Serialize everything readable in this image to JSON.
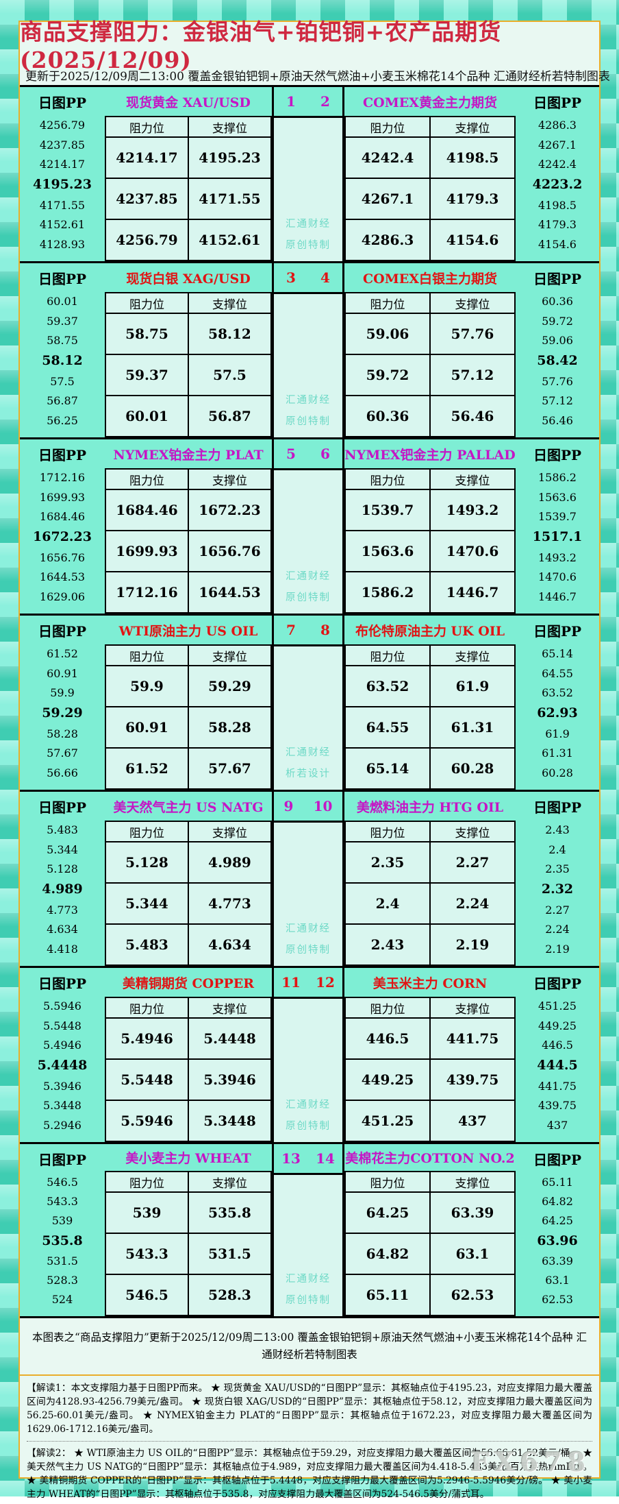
{
  "meta": {
    "update_line": "更新于2025/12/09周二13:00 覆盖金银铂钯铜+原油天然气燃油+小麦玉米棉花14个品种 汇通财经析若特制图表",
    "footer_summary": "本图表之“商品支撑阻力”更新于2025/12/09周二13:00 覆盖金银铂钯铜+原油天然气燃油+小麦玉米棉花14个品种 汇通财经析若特制图表",
    "brand_watermark": "FX678"
  },
  "labels": {
    "pp_header": "日图PP",
    "resistance": "阻力位",
    "support": "支撑位",
    "pivot_bold_index": 3
  },
  "notes": [
    "【解读1：本文支撑阻力基于日图PP而来。 ★ 现货黄金 XAU/USD的“日图PP”显示：其枢轴点位于4195.23，对应支撑阻力最大覆盖区间为4128.93-4256.79美元/盎司。 ★ 现货白银 XAG/USD的“日图PP”显示：其枢轴点位于58.12，对应支撑阻力最大覆盖区间为56.25-60.01美元/盎司。 ★ NYMEX铂金主力 PLAT的“日图PP”显示：其枢轴点位于1672.23，对应支撑阻力最大覆盖区间为1629.06-1712.16美元/盎司。",
    "【解读2： ★ WTI原油主力 US OIL的“日图PP”显示：其枢轴点位于59.29，对应支撑阻力最大覆盖区间为56.66-61.52美元/桶。 ★ 美天然气主力 US NATG的“日图PP”显示：其枢轴点位于4.989，对应支撑阻力最大覆盖区间为4.418-5.483美元/百万英热mmBtu。 ★ 美精铜期货 COPPER的“日图PP”显示：其枢轴点位于5.4448，对应支撑阻力最大覆盖区间为5.2946-5.5946美分/磅。 ★ 美小麦主力 WHEAT的“日图PP”显示：其枢轴点位于535.8，对应支撑阻力最大覆盖区间为524-546.5美分/蒲式耳。"
  ],
  "chart_data": {
    "type": "table",
    "title": "商品支撑阻力：金银油气+铂钯铜+农产品期货(2025/12/09)",
    "columns": [
      "阻力位",
      "支撑位"
    ],
    "blocks": [
      {
        "no_left": "1",
        "no_right": "2",
        "accent": "#c516c5",
        "watermark": [
          "汇通财经",
          "原创特制"
        ],
        "left": {
          "name": "现货黄金 XAU/USD",
          "rows": [
            [
              "4214.17",
              "4195.23"
            ],
            [
              "4237.85",
              "4171.55"
            ],
            [
              "4256.79",
              "4152.61"
            ]
          ],
          "pp": [
            "4256.79",
            "4237.85",
            "4214.17",
            "4195.23",
            "4171.55",
            "4152.61",
            "4128.93"
          ]
        },
        "right": {
          "name": "COMEX黄金主力期货",
          "rows": [
            [
              "4242.4",
              "4198.5"
            ],
            [
              "4267.1",
              "4179.3"
            ],
            [
              "4286.3",
              "4154.6"
            ]
          ],
          "pp": [
            "4286.3",
            "4267.1",
            "4242.4",
            "4223.2",
            "4198.5",
            "4179.3",
            "4154.6"
          ]
        }
      },
      {
        "no_left": "3",
        "no_right": "4",
        "accent": "#e11414",
        "watermark": [
          "汇通财经",
          "原创特制"
        ],
        "left": {
          "name": "现货白银 XAG/USD",
          "rows": [
            [
              "58.75",
              "58.12"
            ],
            [
              "59.37",
              "57.5"
            ],
            [
              "60.01",
              "56.87"
            ]
          ],
          "pp": [
            "60.01",
            "59.37",
            "58.75",
            "58.12",
            "57.5",
            "56.87",
            "56.25"
          ]
        },
        "right": {
          "name": "COMEX白银主力期货",
          "rows": [
            [
              "59.06",
              "57.76"
            ],
            [
              "59.72",
              "57.12"
            ],
            [
              "60.36",
              "56.46"
            ]
          ],
          "pp": [
            "60.36",
            "59.72",
            "59.06",
            "58.42",
            "57.76",
            "57.12",
            "56.46"
          ]
        }
      },
      {
        "no_left": "5",
        "no_right": "6",
        "accent": "#c516c5",
        "watermark": [
          "汇通财经",
          "原创特制"
        ],
        "left": {
          "name": "NYMEX铂金主力 PLAT",
          "rows": [
            [
              "1684.46",
              "1672.23"
            ],
            [
              "1699.93",
              "1656.76"
            ],
            [
              "1712.16",
              "1644.53"
            ]
          ],
          "pp": [
            "1712.16",
            "1699.93",
            "1684.46",
            "1672.23",
            "1656.76",
            "1644.53",
            "1629.06"
          ]
        },
        "right": {
          "name": "NYMEX钯金主力 PALLAD",
          "rows": [
            [
              "1539.7",
              "1493.2"
            ],
            [
              "1563.6",
              "1470.6"
            ],
            [
              "1586.2",
              "1446.7"
            ]
          ],
          "pp": [
            "1586.2",
            "1563.6",
            "1539.7",
            "1517.1",
            "1493.2",
            "1470.6",
            "1446.7"
          ]
        }
      },
      {
        "no_left": "7",
        "no_right": "8",
        "accent": "#e11414",
        "watermark": [
          "汇通财经",
          "析若设计"
        ],
        "left": {
          "name": "WTI原油主力 US OIL",
          "rows": [
            [
              "59.9",
              "59.29"
            ],
            [
              "60.91",
              "58.28"
            ],
            [
              "61.52",
              "57.67"
            ]
          ],
          "pp": [
            "61.52",
            "60.91",
            "59.9",
            "59.29",
            "58.28",
            "57.67",
            "56.66"
          ]
        },
        "right": {
          "name": "布伦特原油主力 UK OIL",
          "rows": [
            [
              "63.52",
              "61.9"
            ],
            [
              "64.55",
              "61.31"
            ],
            [
              "65.14",
              "60.28"
            ]
          ],
          "pp": [
            "65.14",
            "64.55",
            "63.52",
            "62.93",
            "61.9",
            "61.31",
            "60.28"
          ]
        }
      },
      {
        "no_left": "9",
        "no_right": "10",
        "accent": "#c516c5",
        "watermark": [
          "汇通财经",
          "原创特制"
        ],
        "left": {
          "name": "美天然气主力 US NATG",
          "rows": [
            [
              "5.128",
              "4.989"
            ],
            [
              "5.344",
              "4.773"
            ],
            [
              "5.483",
              "4.634"
            ]
          ],
          "pp": [
            "5.483",
            "5.344",
            "5.128",
            "4.989",
            "4.773",
            "4.634",
            "4.418"
          ]
        },
        "right": {
          "name": "美燃料油主力 HTG OIL",
          "rows": [
            [
              "2.35",
              "2.27"
            ],
            [
              "2.4",
              "2.24"
            ],
            [
              "2.43",
              "2.19"
            ]
          ],
          "pp": [
            "2.43",
            "2.4",
            "2.35",
            "2.32",
            "2.27",
            "2.24",
            "2.19"
          ]
        }
      },
      {
        "no_left": "11",
        "no_right": "12",
        "accent": "#e11414",
        "watermark": [
          "汇通财经",
          "原创特制"
        ],
        "left": {
          "name": "美精铜期货 COPPER",
          "rows": [
            [
              "5.4946",
              "5.4448"
            ],
            [
              "5.5448",
              "5.3946"
            ],
            [
              "5.5946",
              "5.3448"
            ]
          ],
          "pp": [
            "5.5946",
            "5.5448",
            "5.4946",
            "5.4448",
            "5.3946",
            "5.3448",
            "5.2946"
          ]
        },
        "right": {
          "name": "美玉米主力 CORN",
          "rows": [
            [
              "446.5",
              "441.75"
            ],
            [
              "449.25",
              "439.75"
            ],
            [
              "451.25",
              "437"
            ]
          ],
          "pp": [
            "451.25",
            "449.25",
            "446.5",
            "444.5",
            "441.75",
            "439.75",
            "437"
          ]
        }
      },
      {
        "no_left": "13",
        "no_right": "14",
        "accent": "#c516c5",
        "watermark": [
          "汇通财经",
          "原创特制"
        ],
        "left": {
          "name": "美小麦主力 WHEAT",
          "rows": [
            [
              "539",
              "535.8"
            ],
            [
              "543.3",
              "531.5"
            ],
            [
              "546.5",
              "528.3"
            ]
          ],
          "pp": [
            "546.5",
            "543.3",
            "539",
            "535.8",
            "531.5",
            "528.3",
            "524"
          ]
        },
        "right": {
          "name": "美棉花主力COTTON NO.2",
          "rows": [
            [
              "64.25",
              "63.39"
            ],
            [
              "64.82",
              "63.1"
            ],
            [
              "65.11",
              "62.53"
            ]
          ],
          "pp": [
            "65.11",
            "64.82",
            "64.25",
            "63.96",
            "63.39",
            "63.1",
            "62.53"
          ]
        }
      }
    ]
  }
}
